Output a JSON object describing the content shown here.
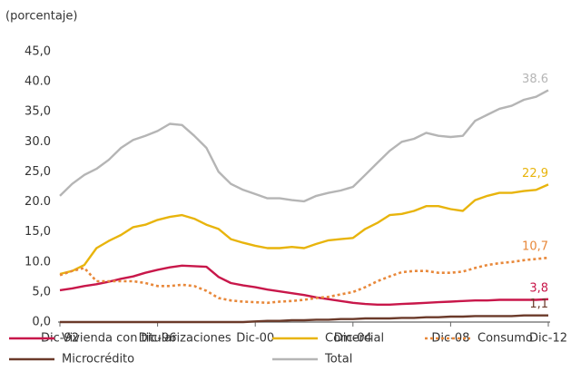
{
  "chart_data": {
    "type": "line",
    "y_axis_label": "(porcentaje)",
    "categories": [
      "Dic-92",
      null,
      null,
      null,
      null,
      null,
      null,
      null,
      "Dic-96",
      null,
      null,
      null,
      null,
      null,
      null,
      null,
      "Dic-00",
      null,
      null,
      null,
      null,
      null,
      null,
      null,
      "Dic-04",
      null,
      null,
      null,
      null,
      null,
      null,
      null,
      "Dic-08",
      null,
      null,
      null,
      null,
      null,
      null,
      null,
      "Dic-12"
    ],
    "ylim": [
      0,
      45
    ],
    "yticks": [
      {
        "value": 0,
        "label": "0,0"
      },
      {
        "value": 5,
        "label": "5,0"
      },
      {
        "value": 10,
        "label": "10.0"
      },
      {
        "value": 15,
        "label": "15,0"
      },
      {
        "value": 20,
        "label": "20.0"
      },
      {
        "value": 25,
        "label": "25,0"
      },
      {
        "value": 30,
        "label": "30.0"
      },
      {
        "value": 35,
        "label": "35,0"
      },
      {
        "value": 40,
        "label": "40.0"
      },
      {
        "value": 45,
        "label": "45,0"
      }
    ],
    "grid": false,
    "legend": "bottom",
    "series": [
      {
        "name": "Vivienda con titularizaciones",
        "color": "#c8174a",
        "dash": "solid",
        "values": [
          5.3,
          5.6,
          6,
          6.3,
          6.7,
          7.2,
          7.6,
          8.2,
          8.7,
          9.1,
          9.4,
          9.3,
          9.2,
          7.5,
          6.5,
          6.1,
          5.8,
          5.4,
          5.1,
          4.8,
          4.5,
          4.1,
          3.8,
          3.5,
          3.2,
          3,
          2.9,
          2.9,
          3,
          3.1,
          3.2,
          3.3,
          3.4,
          3.5,
          3.6,
          3.6,
          3.7,
          3.7,
          3.7,
          3.7,
          3.8
        ],
        "value_labels": [
          null,
          null,
          null,
          null,
          null,
          null,
          null,
          null,
          null,
          null,
          null,
          null,
          null,
          null,
          null,
          null,
          null,
          null,
          null,
          null,
          null,
          null,
          null,
          null,
          null,
          null,
          null,
          null,
          null,
          null,
          null,
          null,
          null,
          null,
          null,
          null,
          null,
          null,
          null,
          null,
          "3,8"
        ]
      },
      {
        "name": "Comercial",
        "color": "#e8b40c",
        "dash": "solid",
        "values": [
          8,
          8.5,
          9.5,
          12.3,
          13.5,
          14.5,
          15.8,
          16.2,
          17,
          17.5,
          17.8,
          17.2,
          16.2,
          15.5,
          13.8,
          13.2,
          12.7,
          12.3,
          12.3,
          12.5,
          12.3,
          13,
          13.6,
          13.8,
          14,
          15.5,
          16.5,
          17.8,
          18,
          18.5,
          19.3,
          19.3,
          18.8,
          18.5,
          20.3,
          21,
          21.5,
          21.5,
          21.8,
          22,
          22.9
        ],
        "value_labels": [
          null,
          null,
          null,
          null,
          null,
          null,
          null,
          null,
          null,
          null,
          null,
          null,
          null,
          null,
          null,
          null,
          null,
          null,
          null,
          null,
          null,
          null,
          null,
          null,
          null,
          null,
          null,
          null,
          null,
          null,
          null,
          null,
          null,
          null,
          null,
          null,
          null,
          null,
          null,
          null,
          "22,9"
        ]
      },
      {
        "name": "Consumo",
        "color": "#e8883a",
        "dash": "dotted",
        "values": [
          7.8,
          8.5,
          9,
          6.8,
          6.8,
          6.8,
          6.8,
          6.5,
          6,
          6,
          6.2,
          6,
          5.2,
          4,
          3.6,
          3.4,
          3.3,
          3.2,
          3.4,
          3.5,
          3.7,
          4,
          4.2,
          4.6,
          5,
          5.8,
          6.8,
          7.6,
          8.3,
          8.5,
          8.5,
          8.2,
          8.2,
          8.4,
          9,
          9.5,
          9.8,
          10,
          10.3,
          10.5,
          10.7
        ],
        "value_labels": [
          null,
          null,
          null,
          null,
          null,
          null,
          null,
          null,
          null,
          null,
          null,
          null,
          null,
          null,
          null,
          null,
          null,
          null,
          null,
          null,
          null,
          null,
          null,
          null,
          null,
          null,
          null,
          null,
          null,
          null,
          null,
          null,
          null,
          null,
          null,
          null,
          null,
          null,
          null,
          null,
          "10,7"
        ]
      },
      {
        "name": "Microcrédito",
        "color": "#6b3a2a",
        "dash": "solid",
        "values": [
          0,
          0,
          0,
          0,
          0,
          0,
          0,
          0,
          0,
          0,
          0,
          0,
          0,
          0,
          0,
          0,
          0.1,
          0.2,
          0.2,
          0.3,
          0.3,
          0.4,
          0.4,
          0.5,
          0.5,
          0.6,
          0.6,
          0.6,
          0.7,
          0.7,
          0.8,
          0.8,
          0.9,
          0.9,
          1.0,
          1.0,
          1.0,
          1.0,
          1.1,
          1.1,
          1.1
        ],
        "value_labels": [
          null,
          null,
          null,
          null,
          null,
          null,
          null,
          null,
          null,
          null,
          null,
          null,
          null,
          null,
          null,
          null,
          null,
          null,
          null,
          null,
          null,
          null,
          null,
          null,
          null,
          null,
          null,
          null,
          null,
          null,
          null,
          null,
          null,
          null,
          null,
          null,
          null,
          null,
          null,
          null,
          "1,1"
        ]
      },
      {
        "name": "Total",
        "color": "#b5b5b5",
        "dash": "solid",
        "values": [
          21,
          23,
          24.5,
          25.5,
          27,
          29,
          30.3,
          31,
          31.8,
          33,
          32.8,
          31,
          29,
          25,
          23,
          22,
          21.3,
          20.6,
          20.6,
          20.3,
          20.1,
          21,
          21.5,
          21.9,
          22.5,
          24.5,
          26.5,
          28.5,
          30,
          30.5,
          31.5,
          31,
          30.8,
          31,
          33.5,
          34.5,
          35.5,
          36,
          37,
          37.5,
          38.6
        ],
        "value_labels": [
          null,
          null,
          null,
          null,
          null,
          null,
          null,
          null,
          null,
          null,
          null,
          null,
          null,
          null,
          null,
          null,
          null,
          null,
          null,
          null,
          null,
          null,
          null,
          null,
          null,
          null,
          null,
          null,
          null,
          null,
          null,
          null,
          null,
          null,
          null,
          null,
          null,
          null,
          null,
          null,
          "38.6"
        ]
      }
    ]
  }
}
